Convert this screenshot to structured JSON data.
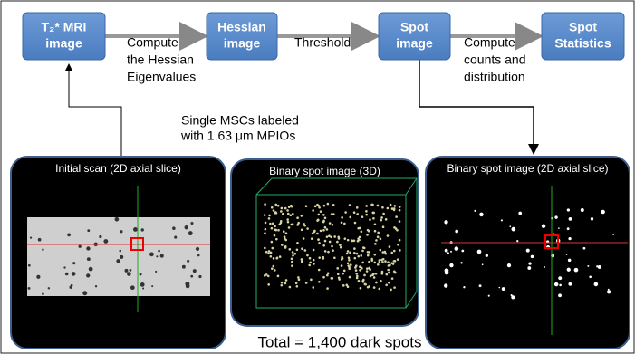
{
  "flow": {
    "steps": [
      {
        "lines": [
          "T₂* MRI",
          "image"
        ]
      },
      {
        "lines": [
          "Hessian",
          "image"
        ]
      },
      {
        "lines": [
          "Spot",
          "image"
        ]
      },
      {
        "lines": [
          "Spot",
          "Statistics"
        ]
      }
    ],
    "transitions": [
      {
        "lines": [
          "Compute",
          "the Hessian",
          "Eigenvalues"
        ]
      },
      {
        "lines": [
          "Threshold"
        ]
      },
      {
        "lines": [
          "Compute",
          "counts and",
          "distribution"
        ]
      }
    ]
  },
  "annotation": {
    "lines": [
      "Single MSCs labeled",
      "with 1.63 μm MPIOs"
    ]
  },
  "panels": [
    {
      "title": "Initial scan (2D axial slice)"
    },
    {
      "title": "Binary spot image (3D)"
    },
    {
      "title": "Binary spot image (2D axial slice)"
    }
  ],
  "footer": "Total = 1,400 dark spots"
}
